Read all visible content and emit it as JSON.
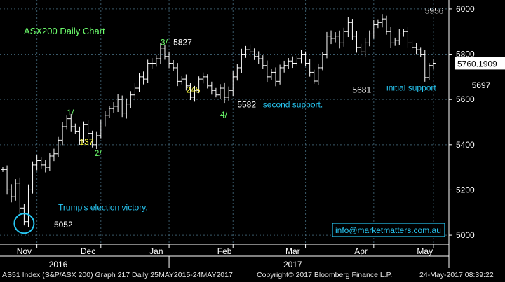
{
  "chart_data": {
    "type": "ohlc",
    "title": "ASX200 Daily Chart",
    "last_price_label": "5760.1909",
    "ylim": [
      4960,
      6040
    ],
    "y_ticks": [
      5000,
      5200,
      5400,
      5600,
      5800,
      6000
    ],
    "y_tick_labels": [
      "5000",
      "5200",
      "5400",
      "5600",
      "5800",
      "6000"
    ],
    "x_months": [
      "Nov",
      "Dec",
      "Jan",
      "Feb",
      "Mar",
      "Apr",
      "May"
    ],
    "x_years": [
      "2016",
      "2017"
    ],
    "close_series": [
      5290,
      5200,
      5170,
      5230,
      5120,
      5060,
      5200,
      5310,
      5330,
      5310,
      5300,
      5350,
      5360,
      5420,
      5480,
      5515,
      5480,
      5460,
      5420,
      5490,
      5450,
      5400,
      5440,
      5500,
      5530,
      5560,
      5570,
      5600,
      5540,
      5580,
      5620,
      5650,
      5700,
      5690,
      5760,
      5760,
      5780,
      5827,
      5790,
      5760,
      5740,
      5680,
      5690,
      5660,
      5610,
      5640,
      5690,
      5700,
      5660,
      5640,
      5620,
      5650,
      5610,
      5640,
      5700,
      5740,
      5800,
      5820,
      5810,
      5790,
      5780,
      5750,
      5700,
      5720,
      5680,
      5740,
      5750,
      5770,
      5760,
      5780,
      5800,
      5760,
      5720,
      5681,
      5740,
      5800,
      5880,
      5870,
      5880,
      5850,
      5900,
      5940,
      5880,
      5830,
      5810,
      5850,
      5890,
      5930,
      5940,
      5956,
      5900,
      5850,
      5860,
      5890,
      5900,
      5850,
      5830,
      5820,
      5800,
      5697,
      5750,
      5760
    ],
    "annotations": [
      {
        "text": "Trump's election victory.",
        "color": "#27c6f2",
        "x": 13,
        "y": 5110
      },
      {
        "text": "5052",
        "color": "#ffffff",
        "x": 12,
        "y": 5035
      },
      {
        "text": "1/",
        "color": "#6dff6d",
        "x": 15,
        "y": 5530
      },
      {
        "text": "137",
        "color": "#ffff44",
        "x": 18,
        "y": 5400
      },
      {
        "text": "2/",
        "color": "#6dff6d",
        "x": 21.5,
        "y": 5350
      },
      {
        "text": "3/",
        "color": "#6dff6d",
        "x": 37,
        "y": 5840
      },
      {
        "text": "5827",
        "color": "#ffffff",
        "x": 40,
        "y": 5840
      },
      {
        "text": "245",
        "color": "#ffff44",
        "x": 43,
        "y": 5630
      },
      {
        "text": "5582",
        "color": "#ffffff",
        "x": 55,
        "y": 5565
      },
      {
        "text": "4/",
        "color": "#6dff6d",
        "x": 51,
        "y": 5520
      },
      {
        "text": "second support.",
        "color": "#27c6f2",
        "x": 61,
        "y": 5565
      },
      {
        "text": "5681",
        "color": "#ffffff",
        "x": 82,
        "y": 5630
      },
      {
        "text": "initial support",
        "color": "#27c6f2",
        "x": 90,
        "y": 5640
      },
      {
        "text": "5956",
        "color": "#ffffff",
        "x": 99,
        "y": 5980
      },
      {
        "text": "5697",
        "color": "#ffffff",
        "x": 110,
        "y": 5650
      }
    ],
    "info_box": "info@marketmatters.com.au"
  },
  "footer": {
    "left": "AS51 Index (S&P/ASX 200) Graph 217  Daily 25MAY2015-24MAY2017",
    "center": "Copyright© 2017 Bloomberg Finance L.P.",
    "right": "24-May-2017 08:39:22"
  },
  "colors": {
    "background": "#000000",
    "candles": "#ffffff",
    "grid": "#3a5a6a",
    "annotation_blue": "#27c6f2",
    "annotation_green": "#6dff6d",
    "annotation_yellow": "#ffff44"
  }
}
